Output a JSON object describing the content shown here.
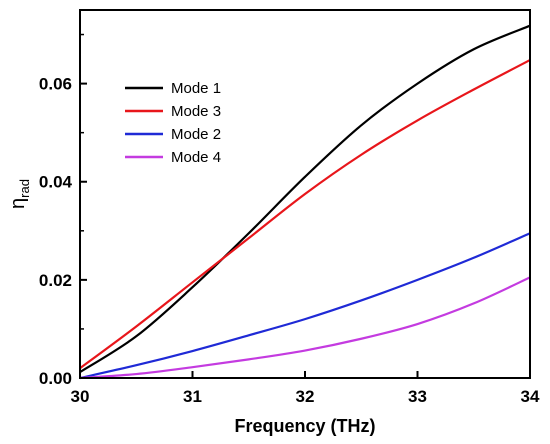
{
  "chart_data": {
    "type": "line",
    "xlabel": "Frequency (THz)",
    "ylabel": "η_rad",
    "ylabel_main": "η",
    "ylabel_sub": "rad",
    "xlim": [
      30,
      34
    ],
    "ylim": [
      0,
      0.075
    ],
    "xticks": [
      30,
      31,
      32,
      33,
      34
    ],
    "yticks": [
      0.0,
      0.02,
      0.04,
      0.06
    ],
    "ytick_labels": [
      "0.00",
      "0.02",
      "0.04",
      "0.06"
    ],
    "legend_position": "top-left",
    "grid": false,
    "x": [
      30,
      30.5,
      31,
      31.5,
      32,
      32.5,
      33,
      33.5,
      34
    ],
    "series": [
      {
        "name": "Mode 1",
        "color": "#000000",
        "values": [
          0.0012,
          0.0085,
          0.0185,
          0.0295,
          0.041,
          0.0515,
          0.06,
          0.067,
          0.0718
        ]
      },
      {
        "name": "Mode 3",
        "color": "#e8161b",
        "values": [
          0.002,
          0.0105,
          0.0195,
          0.0285,
          0.0375,
          0.0455,
          0.0525,
          0.0588,
          0.0648
        ]
      },
      {
        "name": "Mode 2",
        "color": "#1f2ad6",
        "values": [
          0.0,
          0.0026,
          0.0055,
          0.0087,
          0.012,
          0.0158,
          0.02,
          0.0245,
          0.0295
        ]
      },
      {
        "name": "Mode 4",
        "color": "#c43be0",
        "values": [
          0.0,
          0.0008,
          0.0022,
          0.0038,
          0.0056,
          0.008,
          0.011,
          0.0152,
          0.0205
        ]
      }
    ]
  }
}
